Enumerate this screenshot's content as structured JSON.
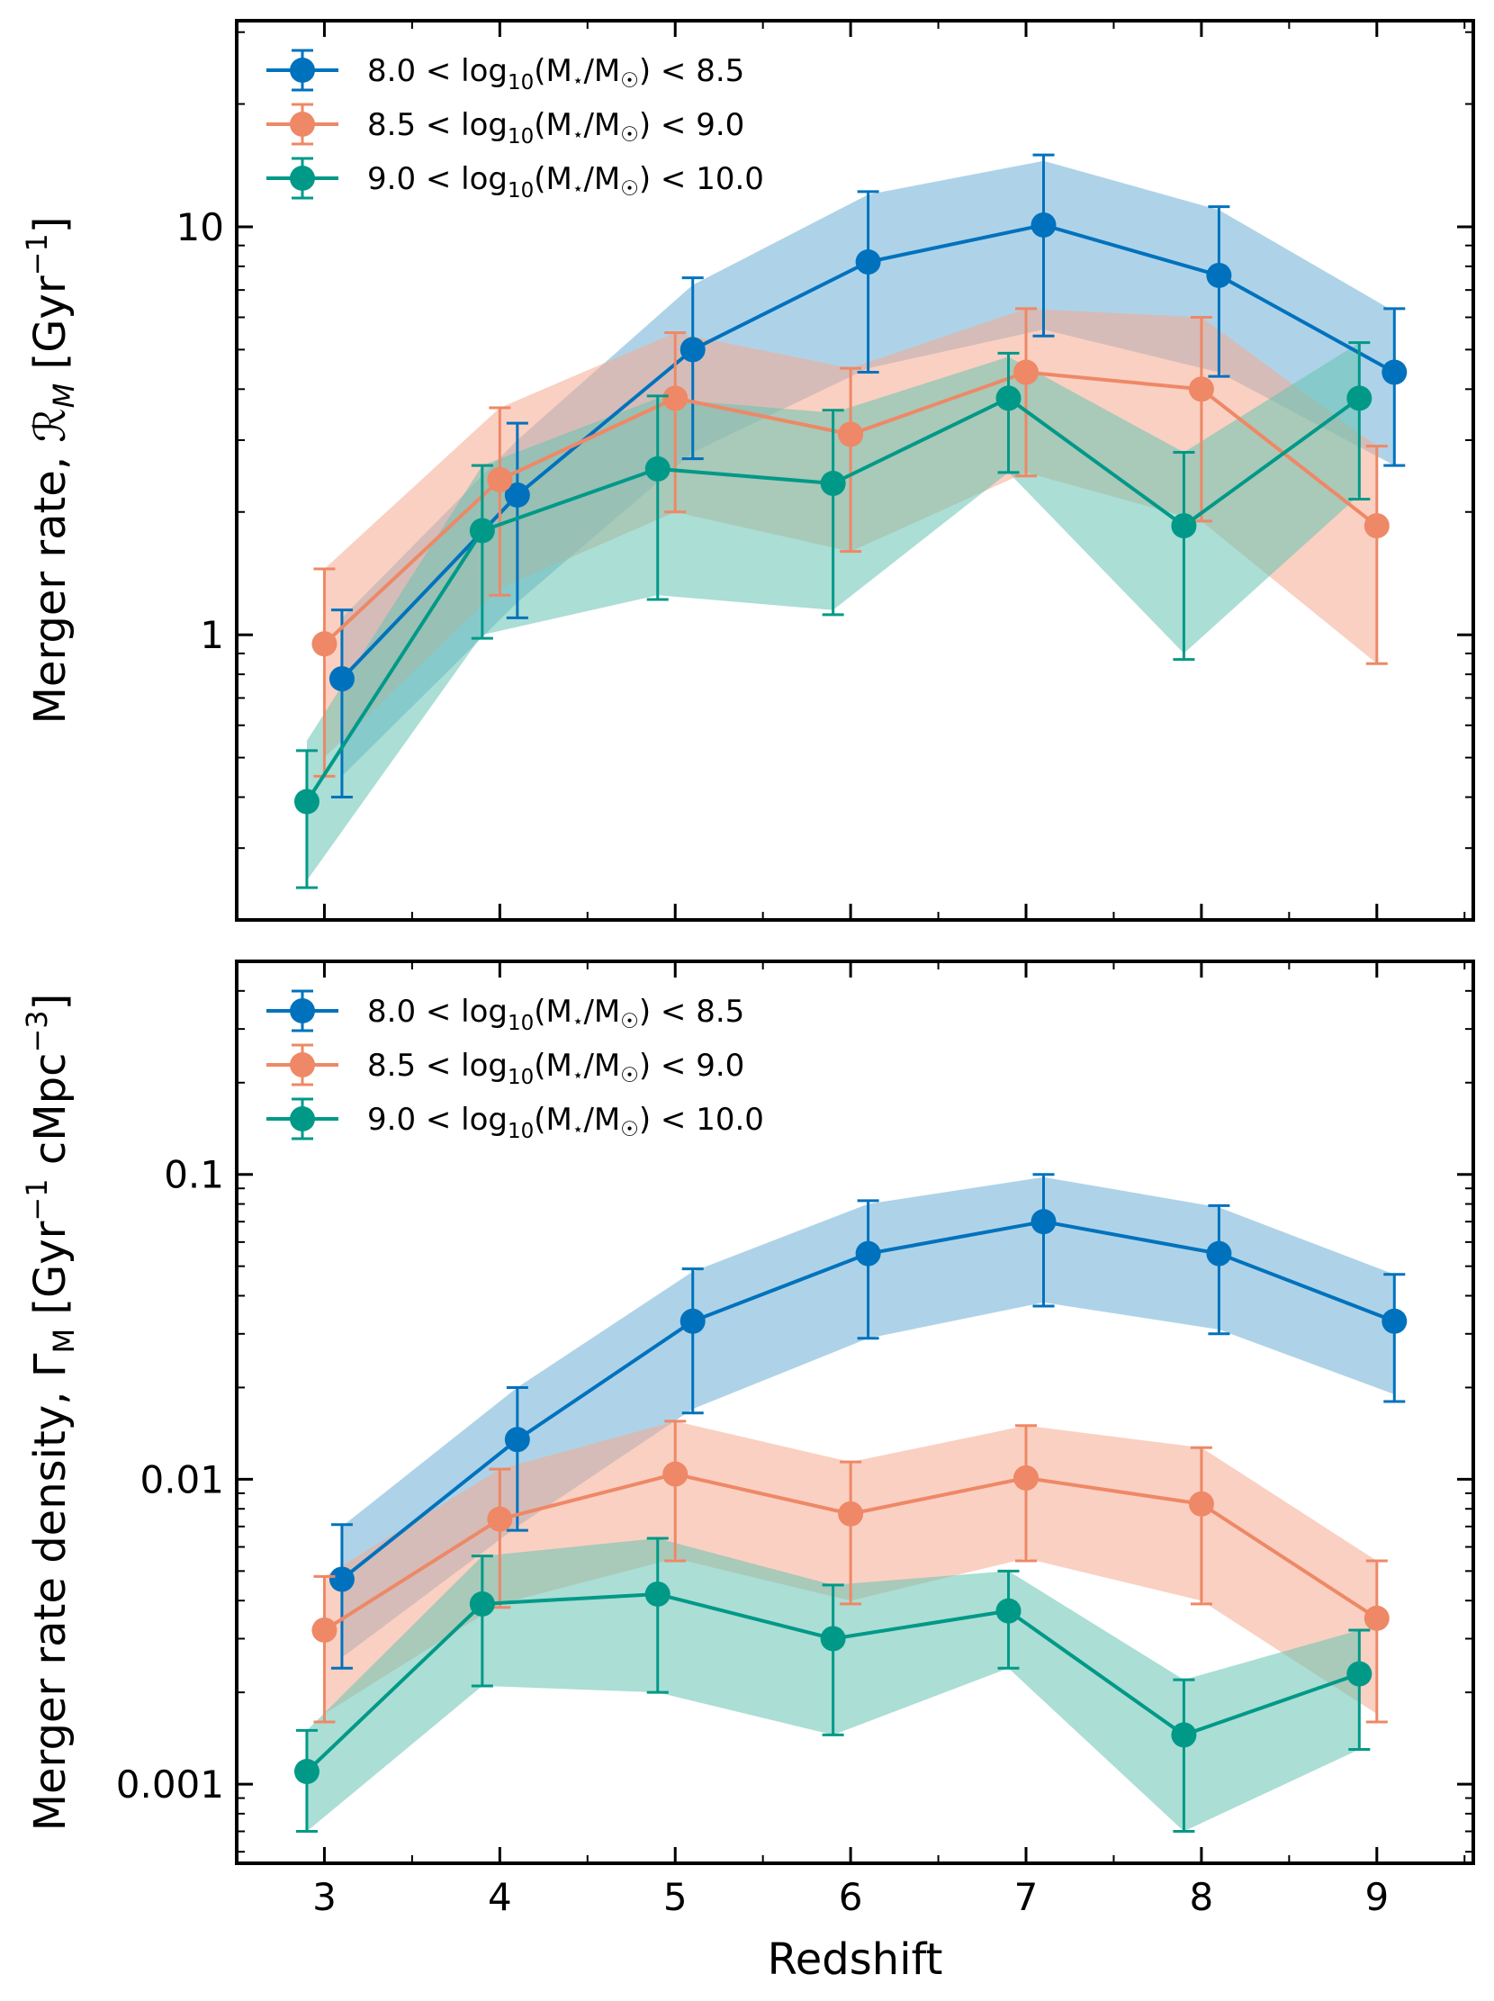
{
  "colors": {
    "blue": "#0072BD",
    "orange": "#EE8866",
    "green": "#009988",
    "band_blue": "#6BAED6",
    "band_orange": "#F5A98F",
    "band_green": "#66C2B3"
  },
  "chart_data": [
    {
      "type": "line",
      "scale": "log",
      "xlabel": "",
      "ylabel": "Merger rate, ℛ_M [Gyr⁻¹]",
      "ylabel_parts": {
        "main": "Merger rate, ",
        "sym": "ℛ",
        "sub": "M",
        "unit_open": " [Gyr",
        "sup": "−1",
        "unit_close": "]"
      },
      "xlim": [
        2.5,
        9.55
      ],
      "ylim": [
        0.2,
        32
      ],
      "yticks": [
        1,
        10
      ],
      "ytick_labels": [
        "1",
        "10"
      ],
      "legend_position": "top-left",
      "series": [
        {
          "name": "8.0 < log10(M⋆/M☉) < 8.5",
          "label": {
            "lo": "8.0",
            "hi": "8.5",
            "log": "log",
            "sub": "10",
            "inner": "(M",
            "star": "⋆",
            "mid": "/M",
            "sun": "☉",
            "close": ")"
          },
          "color_key": "blue",
          "x": [
            3.1,
            4.1,
            5.1,
            6.1,
            7.1,
            8.1,
            9.1
          ],
          "y": [
            0.78,
            2.2,
            5.0,
            8.2,
            10.1,
            7.6,
            4.4
          ],
          "err_low": [
            0.4,
            1.1,
            2.7,
            4.4,
            5.4,
            4.3,
            2.6
          ],
          "err_high": [
            1.15,
            3.3,
            7.5,
            12.2,
            15.0,
            11.2,
            6.3
          ],
          "band_low": [
            0.45,
            1.2,
            2.8,
            4.5,
            5.6,
            4.4,
            2.6
          ],
          "band_high": [
            1.1,
            3.0,
            7.2,
            12.0,
            14.5,
            11.0,
            6.2
          ]
        },
        {
          "name": "8.5 < log10(M⋆/M☉) < 9.0",
          "label": {
            "lo": "8.5",
            "hi": "9.0",
            "log": "log",
            "sub": "10",
            "inner": "(M",
            "star": "⋆",
            "mid": "/M",
            "sun": "☉",
            "close": ")"
          },
          "color_key": "orange",
          "x": [
            3.0,
            4.0,
            5.0,
            6.0,
            7.0,
            8.0,
            9.0
          ],
          "y": [
            0.95,
            2.4,
            3.8,
            3.1,
            4.4,
            4.0,
            1.85
          ],
          "err_low": [
            0.45,
            1.25,
            2.0,
            1.6,
            2.45,
            1.9,
            0.85
          ],
          "err_high": [
            1.45,
            3.6,
            5.5,
            4.5,
            6.3,
            6.0,
            2.9
          ],
          "band_low": [
            0.5,
            1.3,
            2.0,
            1.6,
            2.5,
            1.9,
            0.85
          ],
          "band_high": [
            1.45,
            3.6,
            5.5,
            4.5,
            6.3,
            6.0,
            2.9
          ]
        },
        {
          "name": "9.0 < log10(M⋆/M☉) < 10.0",
          "label": {
            "lo": "9.0",
            "hi": "10.0",
            "log": "log",
            "sub": "10",
            "inner": "(M",
            "star": "⋆",
            "mid": "/M",
            "sun": "☉",
            "close": ")"
          },
          "color_key": "green",
          "x": [
            2.9,
            3.9,
            4.9,
            5.9,
            6.9,
            7.9,
            8.9
          ],
          "y": [
            0.39,
            1.8,
            2.55,
            2.35,
            3.8,
            1.85,
            3.8
          ],
          "err_low": [
            0.24,
            0.98,
            1.22,
            1.12,
            2.5,
            0.87,
            2.15
          ],
          "err_high": [
            0.52,
            2.6,
            3.85,
            3.55,
            4.9,
            2.8,
            5.2
          ],
          "band_low": [
            0.25,
            1.0,
            1.25,
            1.15,
            2.5,
            0.9,
            2.2
          ],
          "band_high": [
            0.55,
            2.6,
            3.8,
            3.5,
            4.8,
            2.8,
            5.2
          ]
        }
      ]
    },
    {
      "type": "line",
      "scale": "log",
      "xlabel": "Redshift",
      "ylabel": "Merger rate density, Γ_M [Gyr⁻¹ cMpc⁻³]",
      "ylabel_parts": {
        "main": "Merger rate density, Γ",
        "sub": "M",
        "unit_open": " [Gyr",
        "sup": "−1",
        "unit_mid": " cMpc",
        "sup2": "−3",
        "unit_close": "]"
      },
      "xlim": [
        2.5,
        9.55
      ],
      "ylim": [
        0.00055,
        0.5
      ],
      "xticks": [
        3,
        4,
        5,
        6,
        7,
        8,
        9
      ],
      "xtick_labels": [
        "3",
        "4",
        "5",
        "6",
        "7",
        "8",
        "9"
      ],
      "yticks": [
        0.001,
        0.01,
        0.1
      ],
      "ytick_labels": [
        "0.001",
        "0.01",
        "0.1"
      ],
      "legend_position": "top-left",
      "series": [
        {
          "name": "8.0 < log10(M⋆/M☉) < 8.5",
          "label": {
            "lo": "8.0",
            "hi": "8.5",
            "log": "log",
            "sub": "10",
            "inner": "(M",
            "star": "⋆",
            "mid": "/M",
            "sun": "☉",
            "close": ")"
          },
          "color_key": "blue",
          "x": [
            3.1,
            4.1,
            5.1,
            6.1,
            7.1,
            8.1,
            9.1
          ],
          "y": [
            0.0047,
            0.0135,
            0.033,
            0.055,
            0.07,
            0.055,
            0.033
          ],
          "err_low": [
            0.0024,
            0.0068,
            0.0165,
            0.029,
            0.037,
            0.03,
            0.018
          ],
          "err_high": [
            0.0071,
            0.02,
            0.049,
            0.082,
            0.1,
            0.079,
            0.047
          ],
          "band_low": [
            0.0026,
            0.007,
            0.017,
            0.029,
            0.038,
            0.031,
            0.019
          ],
          "band_high": [
            0.007,
            0.02,
            0.048,
            0.08,
            0.098,
            0.078,
            0.047
          ]
        },
        {
          "name": "8.5 < log10(M⋆/M☉) < 9.0",
          "label": {
            "lo": "8.5",
            "hi": "9.0",
            "log": "log",
            "sub": "10",
            "inner": "(M",
            "star": "⋆",
            "mid": "/M",
            "sun": "☉",
            "close": ")"
          },
          "color_key": "orange",
          "x": [
            3.0,
            4.0,
            5.0,
            6.0,
            7.0,
            8.0,
            9.0
          ],
          "y": [
            0.0032,
            0.0074,
            0.0104,
            0.0077,
            0.0101,
            0.0083,
            0.0035
          ],
          "err_low": [
            0.0016,
            0.0038,
            0.0054,
            0.0039,
            0.0054,
            0.0039,
            0.0016
          ],
          "err_high": [
            0.0048,
            0.0108,
            0.0155,
            0.0114,
            0.015,
            0.0127,
            0.0054
          ],
          "band_low": [
            0.0017,
            0.0039,
            0.0055,
            0.004,
            0.0055,
            0.004,
            0.0017
          ],
          "band_high": [
            0.0048,
            0.0108,
            0.0155,
            0.0114,
            0.015,
            0.0127,
            0.0054
          ]
        },
        {
          "name": "9.0 < log10(M⋆/M☉) < 10.0",
          "label": {
            "lo": "9.0",
            "hi": "10.0",
            "log": "log",
            "sub": "10",
            "inner": "(M",
            "star": "⋆",
            "mid": "/M",
            "sun": "☉",
            "close": ")"
          },
          "color_key": "green",
          "x": [
            2.9,
            3.9,
            4.9,
            5.9,
            6.9,
            7.9,
            8.9
          ],
          "y": [
            0.0011,
            0.0039,
            0.0042,
            0.003,
            0.0037,
            0.00145,
            0.0023
          ],
          "err_low": [
            0.0007,
            0.0021,
            0.002,
            0.00145,
            0.0024,
            0.0007,
            0.0013
          ],
          "err_high": [
            0.0015,
            0.0056,
            0.0064,
            0.0045,
            0.005,
            0.0022,
            0.0032
          ],
          "band_low": [
            0.0007,
            0.0021,
            0.002,
            0.00145,
            0.0024,
            0.0007,
            0.0013
          ],
          "band_high": [
            0.0015,
            0.0056,
            0.0064,
            0.0045,
            0.005,
            0.0022,
            0.0032
          ]
        }
      ]
    }
  ]
}
